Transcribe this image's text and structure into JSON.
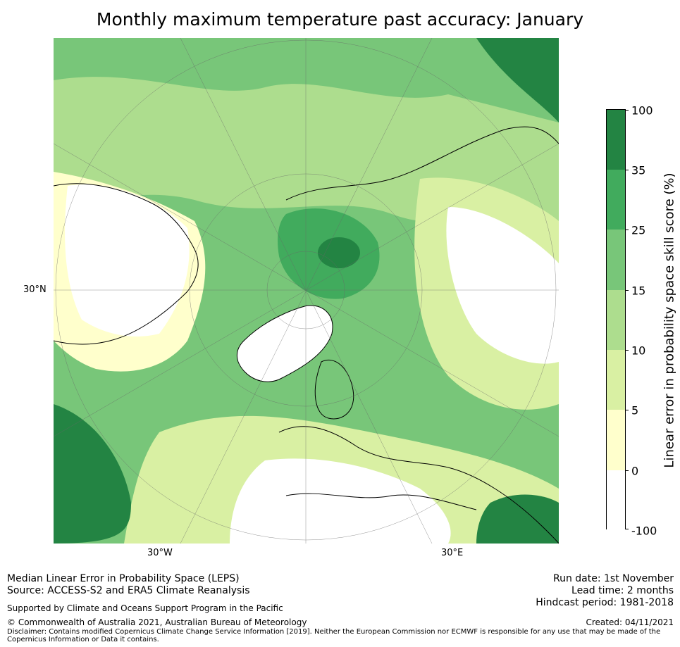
{
  "title": "Monthly maximum temperature past accuracy: January",
  "map": {
    "projection": "north-polar-stereographic",
    "lat_label": "30°N",
    "lon_labels": [
      "30°W",
      "30°E"
    ]
  },
  "colorbar": {
    "label": "Linear error in probability space skill score (%)",
    "ticks": [
      "100",
      "35",
      "25",
      "15",
      "10",
      "5",
      "0",
      "-100"
    ],
    "colors": [
      "#238443",
      "#41ab5d",
      "#78c679",
      "#addd8e",
      "#d9f0a3",
      "#ffffcc",
      "#ffffff"
    ]
  },
  "footer": {
    "line1": "Median Linear Error in Probability Space (LEPS)",
    "line2": "Source: ACCESS-S2 and ERA5 Climate Reanalysis",
    "support": "Supported by Climate and Oceans Support Program in the Pacific",
    "copyright": "© Commonwealth of Australia 2021, Australian Bureau of Meteorology",
    "disclaimer": "Disclaimer: Contains modified Copernicus Climate Change Service Information [2019]. Neither the European Commission nor ECMWF is responsible for any use that may be made of the Copernicus Information or Data it contains.",
    "run_date": "Run date: 1st November",
    "lead_time": "Lead time: 2 months",
    "hindcast": "Hindcast period: 1981-2018",
    "created": "Created: 04/11/2021"
  }
}
